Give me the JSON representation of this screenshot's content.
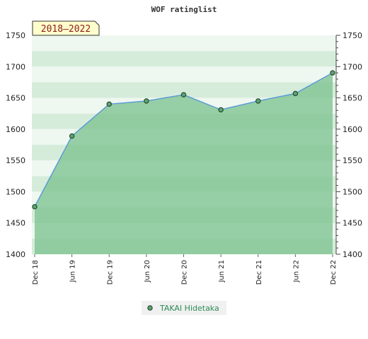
{
  "chart_data": {
    "type": "area",
    "title": "WOF ratinglist",
    "period_badge": "2018–2022",
    "categories": [
      "Dec 18",
      "Jun 19",
      "Dec 19",
      "Jun 20",
      "Dec 20",
      "Jun 21",
      "Dec 21",
      "Jun 22",
      "Dec 22"
    ],
    "series": [
      {
        "name": "TAKAI Hidetaka",
        "values": [
          1476,
          1589,
          1640,
          1645,
          1655,
          1631,
          1645,
          1657,
          1690
        ]
      }
    ],
    "ylim": [
      1400,
      1750
    ],
    "yticks": [
      1400,
      1450,
      1500,
      1550,
      1600,
      1650,
      1700,
      1750
    ],
    "ytick_labels": [
      "1400",
      "1450",
      "1500",
      "1550",
      "1600",
      "1650",
      "1700",
      "1750"
    ],
    "grid": true,
    "legend_position": "bottom-center",
    "colors": {
      "line": "#5b9bd5",
      "area_fill": "#80c492",
      "marker_fill": "#5aa36e",
      "marker_stroke": "#1f3d28",
      "band_light": "#eef7f0",
      "band_mid": "#d6ecdb",
      "badge_bg": "#ffffcc",
      "badge_text": "#8b1a1a",
      "legend_text": "#2e8b57"
    }
  }
}
